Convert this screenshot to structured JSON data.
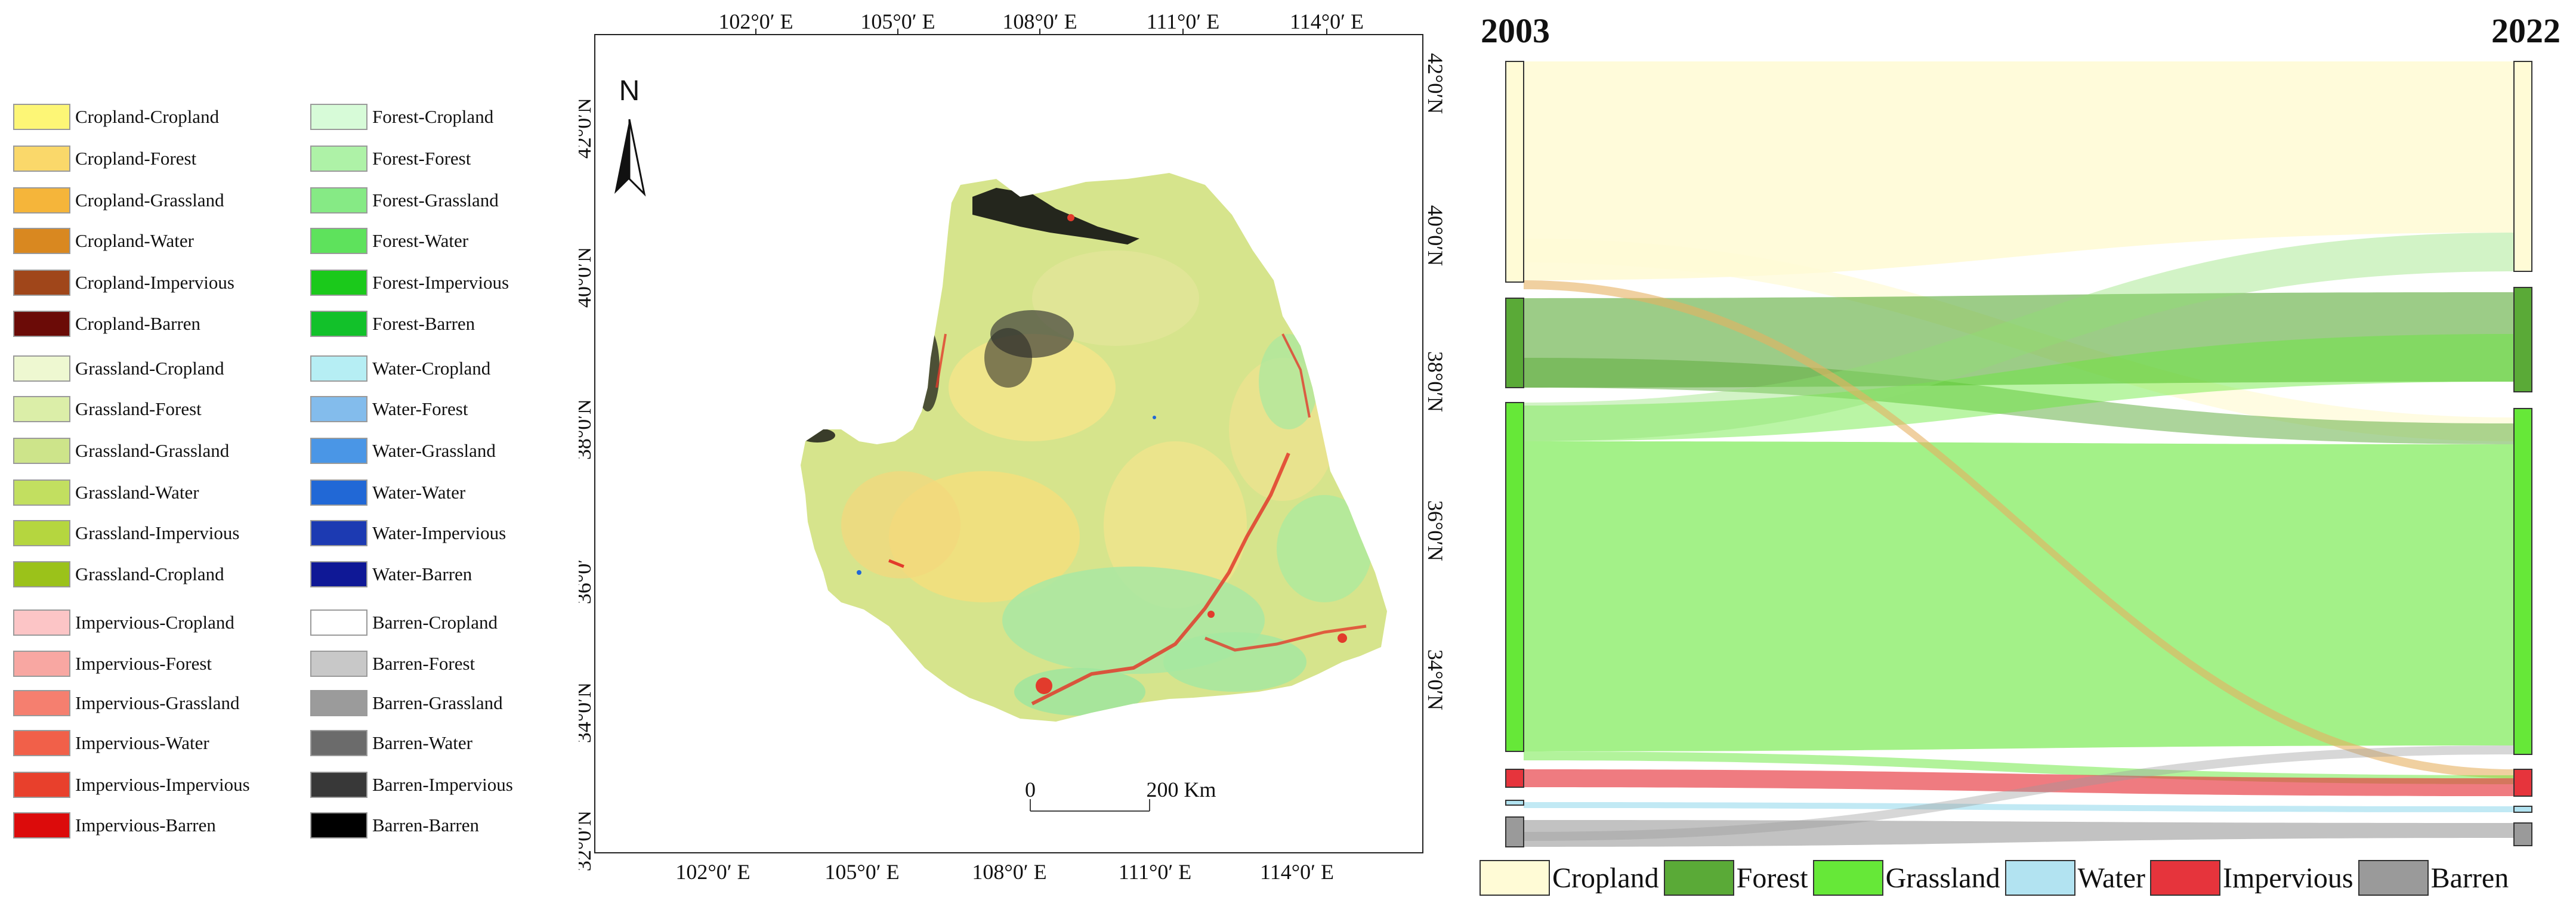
{
  "legend": {
    "col1": [
      {
        "label": "Cropland-Cropland",
        "color": "#fdf676"
      },
      {
        "label": "Cropland-Forest",
        "color": "#fad86a"
      },
      {
        "label": "Cropland-Grassland",
        "color": "#f5b53a"
      },
      {
        "label": "Cropland-Water",
        "color": "#d98820"
      },
      {
        "label": "Cropland-Impervious",
        "color": "#a0461a"
      },
      {
        "label": "Cropland-Barren",
        "color": "#6b0b07"
      },
      {
        "label": "Grassland-Cropland",
        "color": "#eef8d1"
      },
      {
        "label": "Grassland-Forest",
        "color": "#dbeea8"
      },
      {
        "label": "Grassland-Grassland",
        "color": "#cde48a"
      },
      {
        "label": "Grassland-Water",
        "color": "#c2df60"
      },
      {
        "label": "Grassland-Impervious",
        "color": "#b5d63f"
      },
      {
        "label": "Grassland-Cropland",
        "color": "#9bc21a"
      },
      {
        "label": "Impervious-Cropland",
        "color": "#fcc5c6"
      },
      {
        "label": "Impervious-Forest",
        "color": "#f8a7a2"
      },
      {
        "label": "Impervious-Grassland",
        "color": "#f57f6f"
      },
      {
        "label": "Impervious-Water",
        "color": "#f16049"
      },
      {
        "label": "Impervious-Impervious",
        "color": "#e8402c"
      },
      {
        "label": "Impervious-Barren",
        "color": "#dc0b0b"
      }
    ],
    "col2": [
      {
        "label": "Forest-Cropland",
        "color": "#d7fbd8"
      },
      {
        "label": "Forest-Forest",
        "color": "#aef2a7"
      },
      {
        "label": "Forest-Grassland",
        "color": "#86ea85"
      },
      {
        "label": "Forest-Water",
        "color": "#5ee25c"
      },
      {
        "label": "Forest-Impervious",
        "color": "#1bc91b"
      },
      {
        "label": "Forest-Barren",
        "color": "#12c12a"
      },
      {
        "label": "Water-Cropland",
        "color": "#b6eef4"
      },
      {
        "label": "Water-Forest",
        "color": "#83bcec"
      },
      {
        "label": "Water-Grassland",
        "color": "#4a96e6"
      },
      {
        "label": "Water-Water",
        "color": "#2168d6"
      },
      {
        "label": "Water-Impervious",
        "color": "#1c3ab2"
      },
      {
        "label": "Water-Barren",
        "color": "#0f1896"
      },
      {
        "label": "Barren-Cropland",
        "color": "#ffffff"
      },
      {
        "label": "Barren-Forest",
        "color": "#c8c8c8"
      },
      {
        "label": "Barren-Grassland",
        "color": "#9b9b9b"
      },
      {
        "label": "Barren-Water",
        "color": "#6b6b6b"
      },
      {
        "label": "Barren-Impervious",
        "color": "#383838"
      },
      {
        "label": "Barren-Barren",
        "color": "#000000"
      }
    ]
  },
  "map": {
    "lon_ticks": [
      "102°0′ E",
      "105°0′ E",
      "108°0′ E",
      "111°0′ E",
      "114°0′ E"
    ],
    "lat_ticks": [
      "32°0′N",
      "34°0′N",
      "36°0′",
      "38°0′N",
      "40°0′N",
      "42°0′N"
    ],
    "lat_ticks_right": [
      "34°0′N",
      "36°0′N",
      "38°0′N",
      "40°0′N",
      "42°0′N"
    ],
    "north_label": "N",
    "scale_zero": "0",
    "scale_label": "200 Km"
  },
  "sankey": {
    "year_left": "2003",
    "year_right": "2022",
    "classes": [
      {
        "name": "Cropland",
        "color": "#fffbd6"
      },
      {
        "name": "Forest",
        "color": "#5aaa37"
      },
      {
        "name": "Grassland",
        "color": "#66e838"
      },
      {
        "name": "Water",
        "color": "#b2e3f1"
      },
      {
        "name": "Impervious",
        "color": "#e6343c"
      },
      {
        "name": "Barren",
        "color": "#9a9a9a"
      }
    ]
  }
}
